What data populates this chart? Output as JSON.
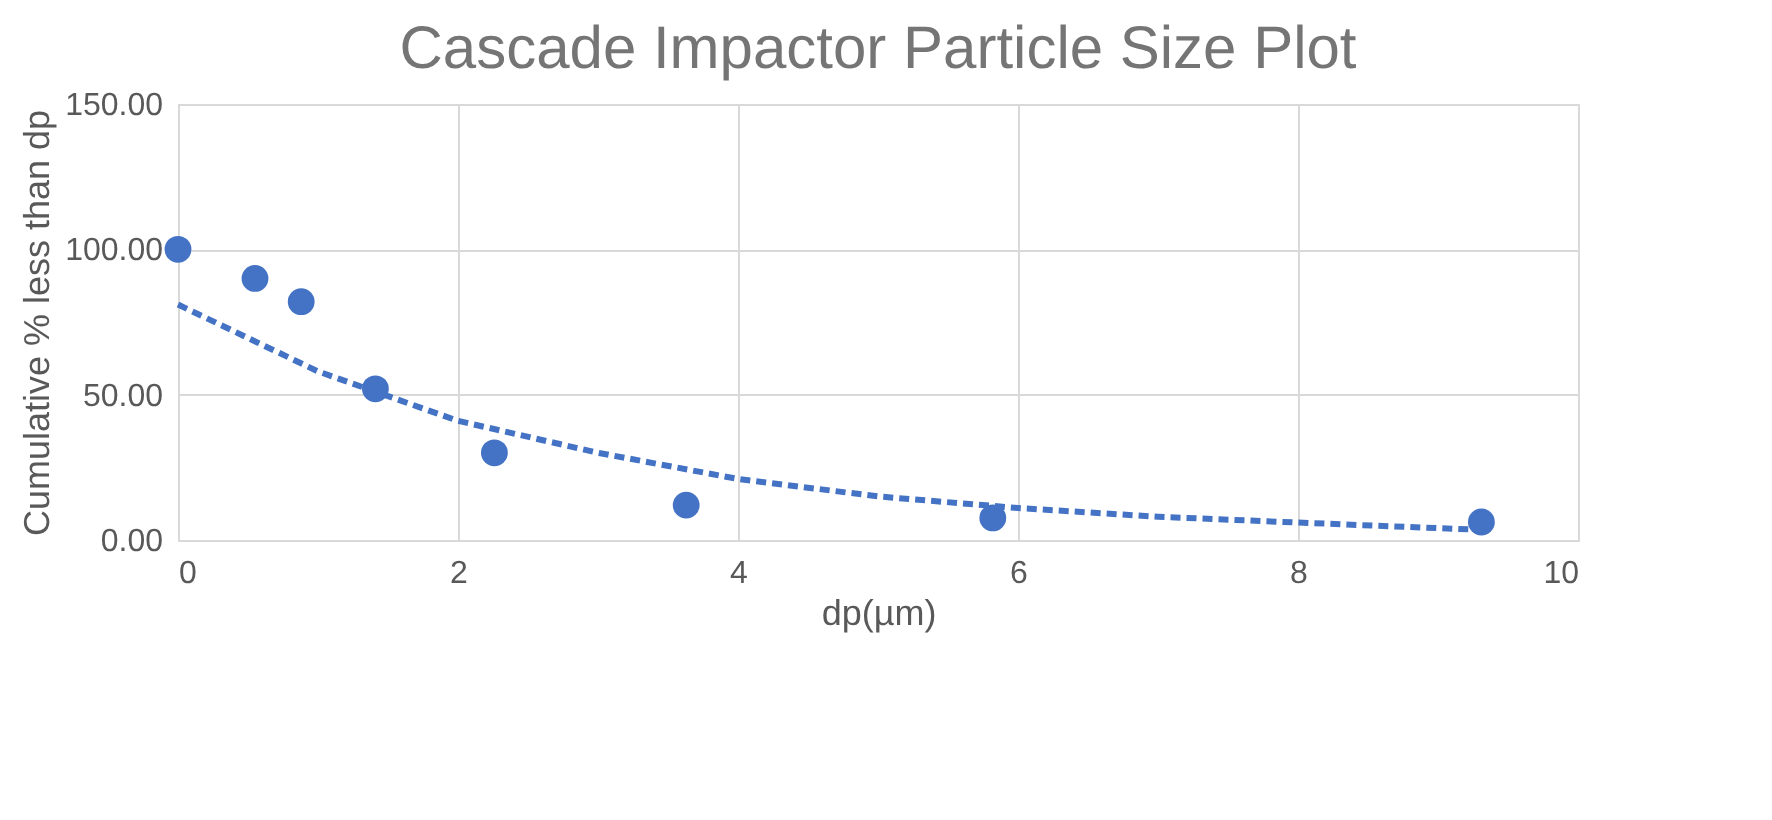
{
  "chart_data": {
    "type": "scatter",
    "title": "Cascade Impactor Particle Size Plot",
    "xlabel": "dp(µm)",
    "ylabel": "Cumulative % less than dp",
    "xlim": [
      0,
      10
    ],
    "xticks": [
      0,
      2,
      4,
      6,
      8,
      10
    ],
    "ylim": [
      0,
      150
    ],
    "yticks": [
      {
        "value": 0,
        "label": "0.00"
      },
      {
        "value": 50,
        "label": "50.00"
      },
      {
        "value": 100,
        "label": "100.00"
      },
      {
        "value": 150,
        "label": "150.00"
      }
    ],
    "grid": true,
    "marker": "circle",
    "series": [
      {
        "color": "#4472c4",
        "x": [
          0,
          0.55,
          0.88,
          1.41,
          2.26,
          3.63,
          5.82,
          9.31
        ],
        "values": [
          100,
          90,
          82,
          52,
          30,
          12,
          7.6,
          6.2
        ]
      },
      {
        "type": "line",
        "color": "#4472c4",
        "line_style": "dashed",
        "marker": "none",
        "x": [
          0,
          1,
          2,
          3,
          4,
          5,
          6,
          7,
          8,
          9.3
        ],
        "values": [
          81,
          58,
          41,
          30,
          21,
          15,
          11,
          8,
          6,
          3.5
        ]
      }
    ]
  }
}
